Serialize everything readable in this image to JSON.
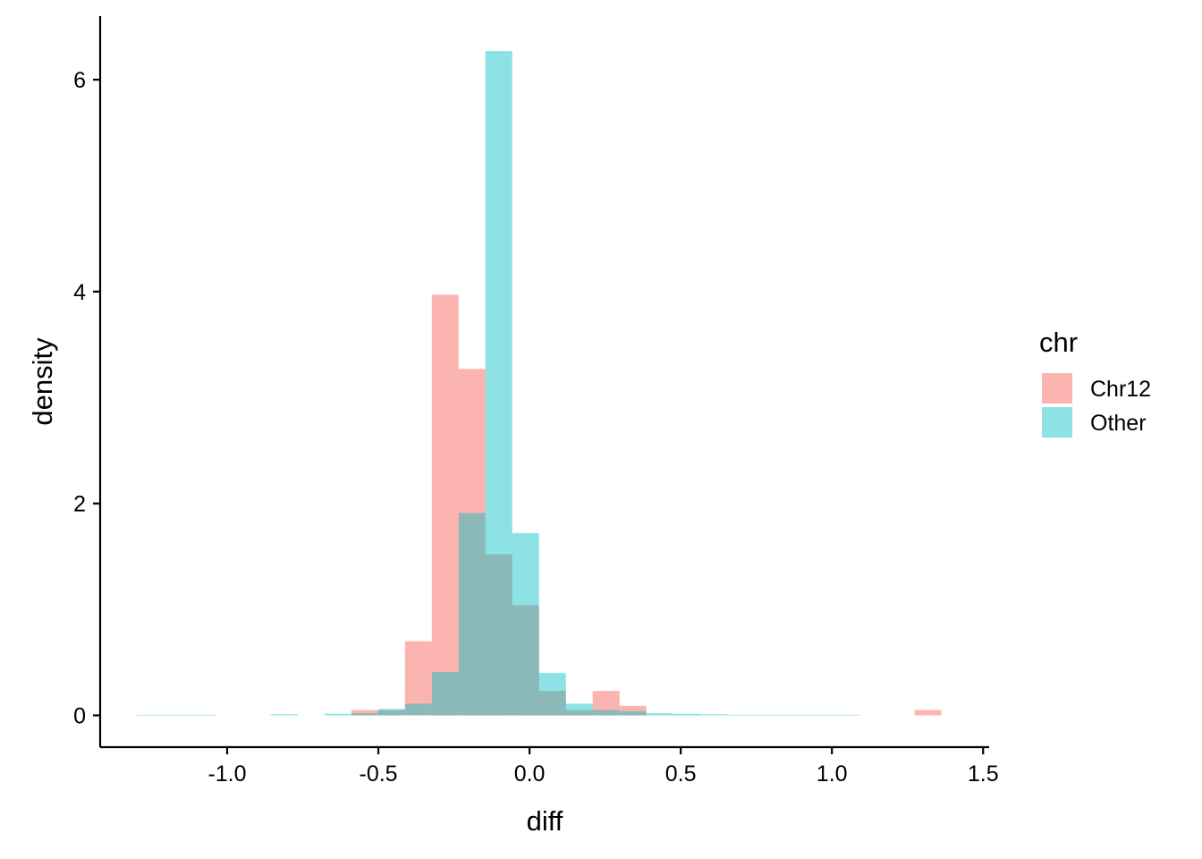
{
  "chart_data": {
    "type": "histogram",
    "title": "",
    "xlabel": "diff",
    "ylabel": "density",
    "xlim": [
      -1.42,
      1.52
    ],
    "ylim": [
      -0.3,
      6.6
    ],
    "x_ticks": [
      -1.0,
      -0.5,
      0.0,
      0.5,
      1.0,
      1.5
    ],
    "x_tick_labels": [
      "-1.0",
      "-0.5",
      "0.0",
      "0.5",
      "1.0",
      "1.5"
    ],
    "y_ticks": [
      0,
      2,
      4,
      6
    ],
    "y_tick_labels": [
      "0",
      "2",
      "4",
      "6"
    ],
    "bin_width": 0.0887,
    "bin_edges_start": -1.299,
    "grid": false,
    "legend": {
      "title": "chr",
      "position": "right",
      "entries": [
        {
          "label": "Chr12",
          "color": "#F8766D"
        },
        {
          "label": "Other",
          "color": "#00BFC4"
        }
      ]
    },
    "series": [
      {
        "name": "Chr12",
        "color": "#F8766D",
        "opacity": 0.55,
        "values": [
          0,
          0,
          0,
          0,
          0,
          0,
          0,
          0,
          0.05,
          0.05,
          0.7,
          3.97,
          3.27,
          1.52,
          1.04,
          0.23,
          0.05,
          0.23,
          0.09,
          0,
          0,
          0,
          0,
          0,
          0,
          0,
          0,
          0,
          0,
          0.05
        ]
      },
      {
        "name": "Other",
        "color": "#00BFC4",
        "opacity": 0.45,
        "values": [
          0.005,
          0.005,
          0.005,
          0,
          0,
          0.01,
          0,
          0.015,
          0.02,
          0.06,
          0.11,
          0.41,
          1.91,
          6.27,
          1.72,
          0.4,
          0.11,
          0.05,
          0.04,
          0.02,
          0.015,
          0.01,
          0.005,
          0.005,
          0.005,
          0.005,
          0.005,
          0,
          0,
          0
        ]
      }
    ]
  }
}
